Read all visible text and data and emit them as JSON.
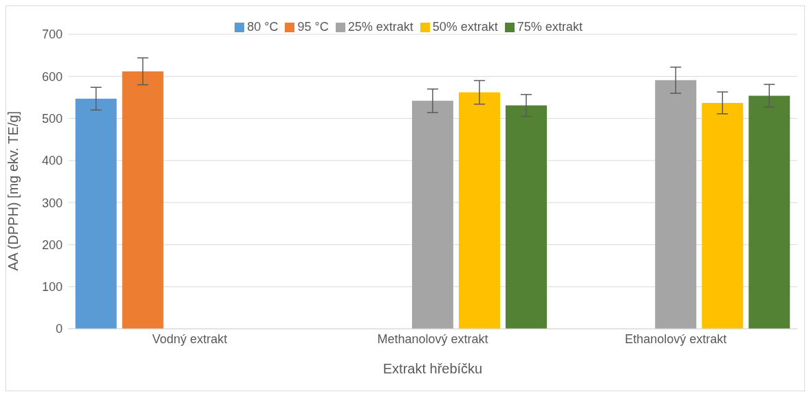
{
  "chart_data": {
    "type": "bar",
    "xlabel": "Extrakt hřebíčku",
    "ylabel": "AA (DPPH) [mg ekv. TE/g]",
    "categories": [
      "Vodný extrakt",
      "Methanolový extrakt",
      "Ethanolový extrakt"
    ],
    "series": [
      {
        "name": "80 °C",
        "color": "#5b9bd5",
        "values": [
          547,
          null,
          null
        ],
        "errors": [
          27,
          null,
          null
        ]
      },
      {
        "name": "95 °C",
        "color": "#ed7d31",
        "values": [
          612,
          null,
          null
        ],
        "errors": [
          32,
          null,
          null
        ]
      },
      {
        "name": "25% extrakt",
        "color": "#a5a5a5",
        "values": [
          null,
          542,
          591
        ],
        "errors": [
          null,
          28,
          31
        ]
      },
      {
        "name": "50% extrakt",
        "color": "#ffc000",
        "values": [
          null,
          562,
          537
        ],
        "errors": [
          null,
          28,
          26
        ]
      },
      {
        "name": "75% extrakt",
        "color": "#548235",
        "values": [
          null,
          531,
          554
        ],
        "errors": [
          null,
          26,
          27
        ]
      }
    ],
    "ylim": [
      0,
      700
    ],
    "yticks": [
      0,
      100,
      200,
      300,
      400,
      500,
      600,
      700
    ],
    "grid": "y",
    "legend": "top"
  }
}
